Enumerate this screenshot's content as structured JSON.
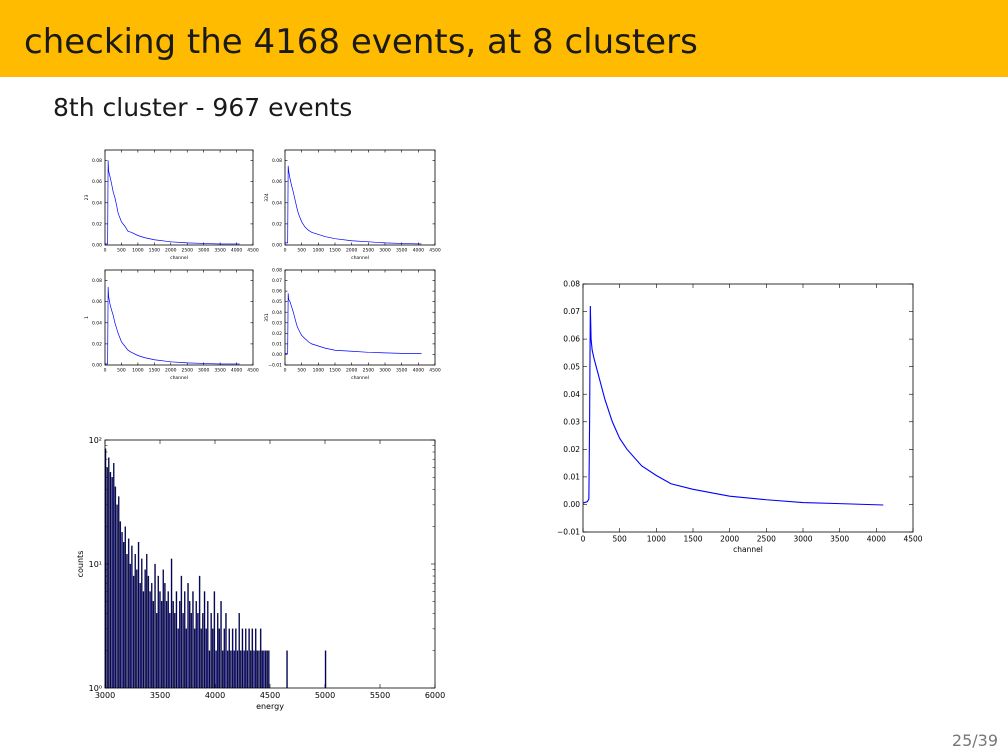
{
  "slide": {
    "title": "checking the 4168 events, at 8 clusters",
    "subtitle": "8th cluster - 967 events",
    "page_number": "25/39",
    "header_color": "#ffbb00"
  },
  "chart_data": [
    {
      "type": "line",
      "ylabel": "23",
      "xlabel": "channel",
      "xlim": [
        0,
        4500
      ],
      "ylim": [
        0,
        0.09
      ],
      "xticks": [
        0,
        500,
        1000,
        1500,
        2000,
        2500,
        3000,
        3500,
        4000,
        4500
      ],
      "xticklabels": [
        "0",
        "500",
        "1000",
        "1500",
        "2000",
        "2500",
        "3000",
        "3500",
        "4000",
        "4500"
      ],
      "yticks": [
        0,
        0.02,
        0.04,
        0.06,
        0.08
      ],
      "yticklabels": [
        "0.00",
        "0.02",
        "0.04",
        "0.06",
        "0.08"
      ],
      "series": [
        {
          "x": [
            0,
            80,
            95,
            110,
            150,
            200,
            250,
            300,
            350,
            400,
            500,
            600,
            700,
            800,
            1000,
            1200,
            1500,
            2000,
            2500,
            3000,
            3500,
            4095
          ],
          "y": [
            0.001,
            0.001,
            0.08,
            0.07,
            0.065,
            0.058,
            0.05,
            0.045,
            0.038,
            0.03,
            0.022,
            0.018,
            0.013,
            0.012,
            0.009,
            0.007,
            0.005,
            0.003,
            0.002,
            0.0015,
            0.001,
            0.001
          ],
          "color": "#0000ff"
        }
      ]
    },
    {
      "type": "line",
      "ylabel": "324",
      "xlabel": "channel",
      "xlim": [
        0,
        4500
      ],
      "ylim": [
        0,
        0.09
      ],
      "xticks": [
        0,
        500,
        1000,
        1500,
        2000,
        2500,
        3000,
        3500,
        4000,
        4500
      ],
      "xticklabels": [
        "0",
        "500",
        "1000",
        "1500",
        "2000",
        "2500",
        "3000",
        "3500",
        "4000",
        "4500"
      ],
      "yticks": [
        0,
        0.02,
        0.04,
        0.06,
        0.08
      ],
      "yticklabels": [
        "0.00",
        "0.02",
        "0.04",
        "0.06",
        "0.08"
      ],
      "series": [
        {
          "x": [
            0,
            80,
            95,
            110,
            150,
            200,
            250,
            300,
            350,
            400,
            500,
            600,
            700,
            800,
            1000,
            1200,
            1500,
            2000,
            2500,
            3000,
            3500,
            4095
          ],
          "y": [
            0.002,
            0.002,
            0.075,
            0.07,
            0.063,
            0.056,
            0.05,
            0.043,
            0.036,
            0.03,
            0.022,
            0.017,
            0.014,
            0.012,
            0.01,
            0.008,
            0.006,
            0.004,
            0.003,
            0.002,
            0.0015,
            0.001
          ],
          "color": "#0000ff"
        }
      ]
    },
    {
      "type": "line",
      "ylabel": "1",
      "xlabel": "channel",
      "xlim": [
        0,
        4500
      ],
      "ylim": [
        0,
        0.09
      ],
      "xticks": [
        0,
        500,
        1000,
        1500,
        2000,
        2500,
        3000,
        3500,
        4000,
        4500
      ],
      "xticklabels": [
        "0",
        "500",
        "1000",
        "1500",
        "2000",
        "2500",
        "3000",
        "3500",
        "4000",
        "4500"
      ],
      "yticks": [
        0,
        0.02,
        0.04,
        0.06,
        0.08
      ],
      "yticklabels": [
        "0.00",
        "0.02",
        "0.04",
        "0.06",
        "0.08"
      ],
      "series": [
        {
          "x": [
            0,
            80,
            95,
            110,
            150,
            200,
            250,
            300,
            350,
            400,
            500,
            600,
            700,
            800,
            1000,
            1200,
            1500,
            2000,
            2500,
            3000,
            3500,
            4095
          ],
          "y": [
            0.001,
            0.001,
            0.074,
            0.065,
            0.058,
            0.052,
            0.047,
            0.04,
            0.035,
            0.03,
            0.022,
            0.018,
            0.014,
            0.012,
            0.009,
            0.007,
            0.005,
            0.003,
            0.002,
            0.0015,
            0.001,
            0.001
          ],
          "color": "#0000ff"
        }
      ]
    },
    {
      "type": "line",
      "ylabel": "351",
      "xlabel": "channel",
      "xlim": [
        0,
        4500
      ],
      "ylim": [
        -0.01,
        0.08
      ],
      "xticks": [
        0,
        500,
        1000,
        1500,
        2000,
        2500,
        3000,
        3500,
        4000,
        4500
      ],
      "xticklabels": [
        "0",
        "500",
        "1000",
        "1500",
        "2000",
        "2500",
        "3000",
        "3500",
        "4000",
        "4500"
      ],
      "yticks": [
        -0.01,
        0,
        0.01,
        0.02,
        0.03,
        0.04,
        0.05,
        0.06,
        0.07,
        0.08
      ],
      "yticklabels": [
        "−0.01",
        "0.00",
        "0.01",
        "0.02",
        "0.03",
        "0.04",
        "0.05",
        "0.06",
        "0.07",
        "0.08"
      ],
      "series": [
        {
          "x": [
            0,
            80,
            95,
            110,
            150,
            200,
            250,
            300,
            350,
            400,
            500,
            600,
            700,
            800,
            1000,
            1200,
            1500,
            2000,
            2500,
            3000,
            3500,
            4095
          ],
          "y": [
            0.001,
            0.001,
            0.058,
            0.052,
            0.05,
            0.045,
            0.04,
            0.034,
            0.028,
            0.024,
            0.018,
            0.015,
            0.012,
            0.01,
            0.008,
            0.006,
            0.004,
            0.003,
            0.002,
            0.0015,
            0.001,
            0.001
          ],
          "color": "#0000ff"
        }
      ]
    },
    {
      "type": "bar",
      "ylabel": "counts",
      "xlabel": "energy",
      "log_y": true,
      "xlim": [
        3000,
        6000
      ],
      "ylim": [
        1,
        100
      ],
      "xticks": [
        3000,
        3500,
        4000,
        4500,
        5000,
        5500,
        6000
      ],
      "xticklabels": [
        "3000",
        "3500",
        "4000",
        "4500",
        "5000",
        "5500",
        "6000"
      ],
      "yticks": [
        1,
        10,
        100
      ],
      "yticklabels": [
        "10⁰",
        "10¹",
        "10²"
      ],
      "bin_width": 15,
      "bins": [
        3000,
        3015,
        3030,
        3045,
        3060,
        3075,
        3090,
        3105,
        3120,
        3135,
        3150,
        3165,
        3180,
        3195,
        3210,
        3225,
        3240,
        3255,
        3270,
        3285,
        3300,
        3315,
        3330,
        3345,
        3360,
        3375,
        3390,
        3405,
        3420,
        3435,
        3450,
        3465,
        3480,
        3495,
        3510,
        3525,
        3540,
        3555,
        3570,
        3585,
        3600,
        3615,
        3630,
        3645,
        3660,
        3675,
        3690,
        3705,
        3720,
        3735,
        3750,
        3765,
        3780,
        3795,
        3810,
        3825,
        3840,
        3855,
        3870,
        3885,
        3900,
        3915,
        3930,
        3945,
        3960,
        3975,
        3990,
        4005,
        4020,
        4035,
        4050,
        4065,
        4080,
        4095,
        4110,
        4125,
        4140,
        4155,
        4170,
        4185,
        4200,
        4215,
        4230,
        4245,
        4260,
        4275,
        4290,
        4305,
        4320,
        4335,
        4350,
        4365,
        4380,
        4395,
        4410,
        4425,
        4440,
        4455,
        4470,
        4485,
        4650,
        5000
      ],
      "counts": [
        85,
        60,
        72,
        55,
        50,
        65,
        42,
        30,
        35,
        22,
        18,
        15,
        20,
        12,
        16,
        10,
        14,
        8,
        12,
        9,
        15,
        7,
        11,
        6,
        9,
        12,
        8,
        6,
        7,
        5,
        10,
        4,
        8,
        6,
        5,
        9,
        7,
        5,
        6,
        4,
        11,
        5,
        4,
        6,
        3,
        5,
        8,
        4,
        6,
        3,
        7,
        5,
        4,
        6,
        3,
        5,
        4,
        8,
        3,
        4,
        6,
        3,
        5,
        2,
        4,
        3,
        6,
        2,
        4,
        3,
        5,
        2,
        3,
        4,
        2,
        3,
        2,
        3,
        2,
        3,
        2,
        4,
        2,
        3,
        2,
        3,
        2,
        3,
        2,
        3,
        2,
        3,
        2,
        2,
        3,
        2,
        2,
        2,
        2,
        2,
        2,
        2
      ],
      "bar_color": "#00008b"
    },
    {
      "type": "line",
      "xlabel": "channel",
      "xlim": [
        0,
        4500
      ],
      "ylim": [
        -0.01,
        0.08
      ],
      "xticks": [
        0,
        500,
        1000,
        1500,
        2000,
        2500,
        3000,
        3500,
        4000,
        4500
      ],
      "xticklabels": [
        "0",
        "500",
        "1000",
        "1500",
        "2000",
        "2500",
        "3000",
        "3500",
        "4000",
        "4500"
      ],
      "yticks": [
        -0.01,
        0,
        0.01,
        0.02,
        0.03,
        0.04,
        0.05,
        0.06,
        0.07,
        0.08
      ],
      "yticklabels": [
        "−0.01",
        "0.00",
        "0.01",
        "0.02",
        "0.03",
        "0.04",
        "0.05",
        "0.06",
        "0.07",
        "0.08"
      ],
      "series": [
        {
          "x": [
            0,
            60,
            80,
            90,
            100,
            110,
            125,
            150,
            200,
            250,
            300,
            400,
            500,
            600,
            800,
            1000,
            1200,
            1500,
            2000,
            2500,
            3000,
            3500,
            4095
          ],
          "y": [
            0.0005,
            0.001,
            0.002,
            0.03,
            0.072,
            0.06,
            0.056,
            0.053,
            0.048,
            0.043,
            0.038,
            0.03,
            0.024,
            0.02,
            0.014,
            0.0105,
            0.0075,
            0.0055,
            0.003,
            0.0017,
            0.0007,
            0.0003,
            -0.0002
          ],
          "color": "#0000ff"
        }
      ]
    }
  ]
}
